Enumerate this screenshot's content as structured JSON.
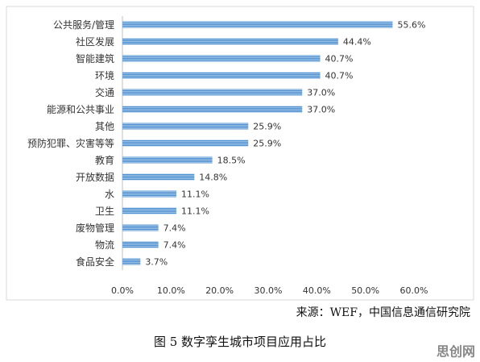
{
  "chart_data": {
    "type": "hbar",
    "categories": [
      "公共服务/管理",
      "社区发展",
      "智能建筑",
      "环境",
      "交通",
      "能源和公共事业",
      "其他",
      "预防犯罪、灾害等等",
      "教育",
      "开放数据",
      "水",
      "卫生",
      "废物管理",
      "物流",
      "食品安全"
    ],
    "values": [
      55.6,
      44.4,
      40.7,
      40.7,
      37.0,
      37.0,
      25.9,
      25.9,
      18.5,
      14.8,
      11.1,
      11.1,
      7.4,
      7.4,
      3.7
    ],
    "value_labels": [
      "55.6%",
      "44.4%",
      "40.7%",
      "40.7%",
      "37.0%",
      "37.0%",
      "25.9%",
      "25.9%",
      "18.5%",
      "14.8%",
      "11.1%",
      "11.1%",
      "7.4%",
      "7.4%",
      "3.7%"
    ],
    "color": "#5b9bd5",
    "xlim": [
      0,
      60
    ],
    "xticks": [
      {
        "value": 0,
        "label": "0.0%"
      },
      {
        "value": 10,
        "label": "10.0%"
      },
      {
        "value": 20,
        "label": "20.0%"
      },
      {
        "value": 30,
        "label": "30.0%"
      },
      {
        "value": 40,
        "label": "40.0%"
      },
      {
        "value": 50,
        "label": "50.0%"
      },
      {
        "value": 60,
        "label": "60.0%"
      }
    ],
    "grid": false,
    "source": "来源：WEF，中国信息通信研究院",
    "caption": "图 5  数字孪生城市项目应用占比",
    "watermark": "思创网"
  }
}
